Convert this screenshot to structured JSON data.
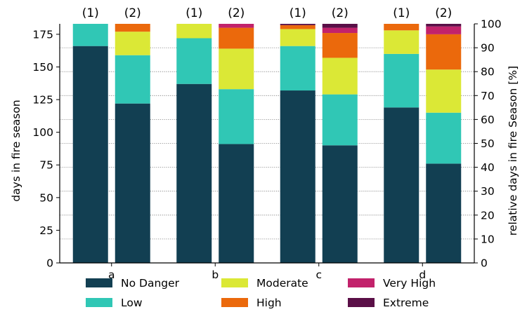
{
  "chart_data": {
    "type": "bar",
    "stacked": true,
    "categories": [
      "a",
      "b",
      "c",
      "d"
    ],
    "bar_labels": [
      "(1)",
      "(2)"
    ],
    "ylabel": "days in fire season",
    "y2label": "relative days in fire Season [%]",
    "ylim": [
      0,
      183
    ],
    "y2lim": [
      0,
      100
    ],
    "yticks": [
      0,
      25,
      50,
      75,
      100,
      125,
      150,
      175
    ],
    "y2ticks": [
      0,
      10,
      20,
      30,
      40,
      50,
      60,
      70,
      80,
      90,
      100
    ],
    "grid": "y2 dotted",
    "legend_position": "bottom",
    "series": [
      {
        "name": "No Danger",
        "color": "#123f52",
        "values": [
          [
            166,
            122
          ],
          [
            137,
            91
          ],
          [
            132,
            90
          ],
          [
            119,
            76
          ]
        ]
      },
      {
        "name": "Low",
        "color": "#30c7b5",
        "values": [
          [
            17,
            37
          ],
          [
            35,
            42
          ],
          [
            34,
            39
          ],
          [
            41,
            39
          ]
        ]
      },
      {
        "name": "Moderate",
        "color": "#dbe836",
        "values": [
          [
            0,
            18
          ],
          [
            11,
            31
          ],
          [
            13,
            28
          ],
          [
            18,
            33
          ]
        ]
      },
      {
        "name": "High",
        "color": "#eb690c",
        "values": [
          [
            0,
            6
          ],
          [
            0,
            16
          ],
          [
            3,
            19
          ],
          [
            5,
            27
          ]
        ]
      },
      {
        "name": "Very High",
        "color": "#c2226b",
        "values": [
          [
            0,
            0
          ],
          [
            0,
            3
          ],
          [
            0,
            4
          ],
          [
            0,
            6
          ]
        ]
      },
      {
        "name": "Extreme",
        "color": "#5a0f47",
        "values": [
          [
            0,
            0
          ],
          [
            0,
            0
          ],
          [
            1,
            3
          ],
          [
            0,
            2
          ]
        ]
      }
    ]
  }
}
